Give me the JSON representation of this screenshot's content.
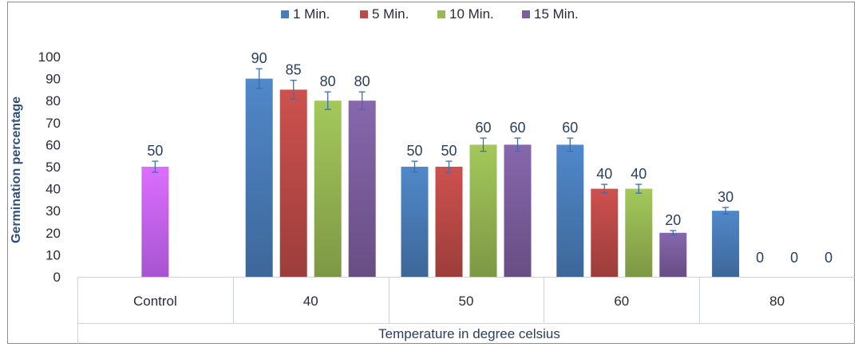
{
  "chart_data": {
    "type": "bar",
    "title": "",
    "xlabel": "Temperature in degree celsius",
    "ylabel": "Germination percentage",
    "ylim": [
      0,
      100
    ],
    "yticks": [
      "0",
      "10",
      "20",
      "30",
      "40",
      "50",
      "60",
      "70",
      "80",
      "90",
      "100"
    ],
    "categories": [
      "Control",
      "40",
      "50",
      "60",
      "80"
    ],
    "legend_position": "top",
    "grid": false,
    "series": [
      {
        "name": "1 Min.",
        "color": "#4a7ebb",
        "values": [
          null,
          90,
          50,
          60,
          30
        ],
        "labels": [
          "",
          "90",
          "50",
          "60",
          "30"
        ]
      },
      {
        "name": "5 Min.",
        "color": "#be4b48",
        "values": [
          null,
          85,
          50,
          40,
          0
        ],
        "labels": [
          "",
          "85",
          "50",
          "40",
          "0"
        ]
      },
      {
        "name": "10 Min.",
        "color": "#98b954",
        "values": [
          null,
          80,
          60,
          40,
          0
        ],
        "labels": [
          "",
          "80",
          "60",
          "40",
          "0"
        ]
      },
      {
        "name": "15 Min.",
        "color": "#7d5fa0",
        "values": [
          null,
          80,
          60,
          20,
          0
        ],
        "labels": [
          "",
          "80",
          "60",
          "20",
          "0"
        ]
      }
    ],
    "control": {
      "category": "Control",
      "value": 50,
      "label": "50",
      "color": "#cc66ff"
    },
    "error_fraction": 0.05
  }
}
